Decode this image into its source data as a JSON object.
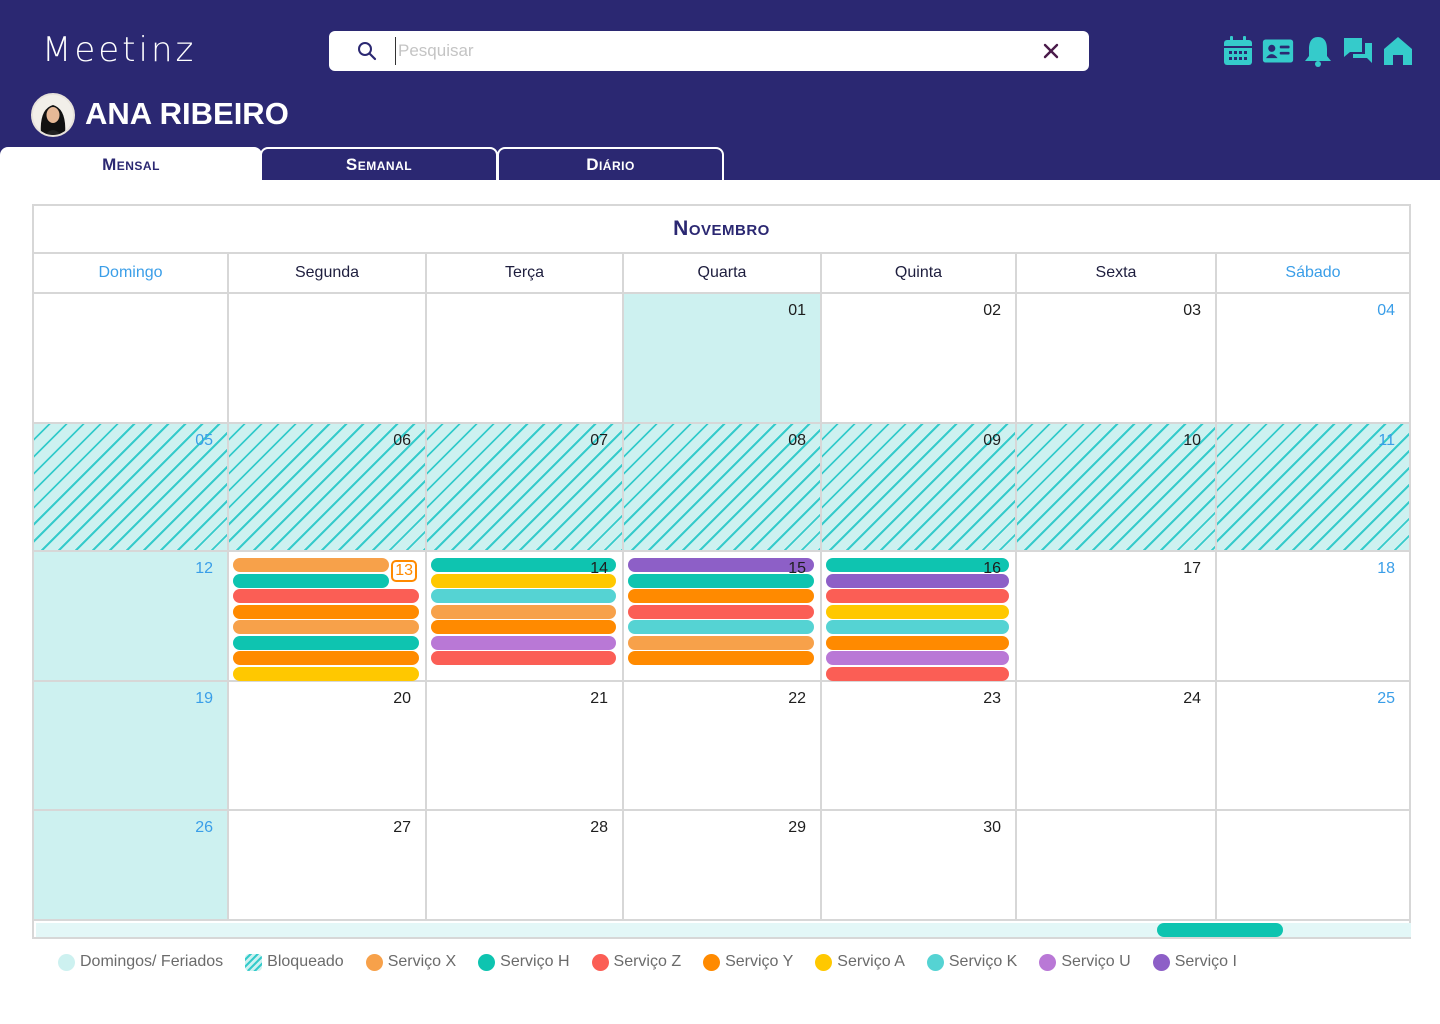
{
  "app": {
    "logo": "Meetinz"
  },
  "search": {
    "placeholder": "Pesquisar",
    "value": ""
  },
  "top_icons": [
    "calendar-icon",
    "contact-card-icon",
    "bell-icon",
    "chat-icon",
    "home-icon"
  ],
  "user": {
    "name": "ANA RIBEIRO"
  },
  "tabs": [
    {
      "label": "Mensal",
      "active": true
    },
    {
      "label": "Semanal",
      "active": false
    },
    {
      "label": "Diário",
      "active": false
    }
  ],
  "calendar": {
    "month": "Novembro",
    "weekdays": [
      "Domingo",
      "Segunda",
      "Terça",
      "Quarta",
      "Quinta",
      "Sexta",
      "Sábado"
    ],
    "weeks": [
      [
        {
          "day": ""
        },
        {
          "day": ""
        },
        {
          "day": ""
        },
        {
          "day": "01",
          "state": "holiday"
        },
        {
          "day": "02"
        },
        {
          "day": "03"
        },
        {
          "day": "04"
        }
      ],
      [
        {
          "day": "05",
          "state": "blocked"
        },
        {
          "day": "06",
          "state": "blocked"
        },
        {
          "day": "07",
          "state": "blocked"
        },
        {
          "day": "08",
          "state": "blocked"
        },
        {
          "day": "09",
          "state": "blocked"
        },
        {
          "day": "10",
          "state": "blocked"
        },
        {
          "day": "11",
          "state": "blocked"
        }
      ],
      [
        {
          "day": "12",
          "state": "holiday"
        },
        {
          "day": "13",
          "today": true,
          "events": [
            "X",
            "H",
            "Z",
            "Y",
            "X",
            "H",
            "Y",
            "A"
          ]
        },
        {
          "day": "14",
          "events": [
            "H",
            "A",
            "K",
            "X",
            "Y",
            "U",
            "Z"
          ]
        },
        {
          "day": "15",
          "events": [
            "I",
            "H",
            "Y",
            "Z",
            "K",
            "X",
            "Y"
          ]
        },
        {
          "day": "16",
          "events": [
            "H",
            "I",
            "Z",
            "A",
            "K",
            "Y",
            "U",
            "Z"
          ]
        },
        {
          "day": "17"
        },
        {
          "day": "18"
        }
      ],
      [
        {
          "day": "19",
          "state": "holiday"
        },
        {
          "day": "20"
        },
        {
          "day": "21"
        },
        {
          "day": "22"
        },
        {
          "day": "23"
        },
        {
          "day": "24"
        },
        {
          "day": "25"
        }
      ],
      [
        {
          "day": "26",
          "state": "holiday"
        },
        {
          "day": "27"
        },
        {
          "day": "28"
        },
        {
          "day": "29"
        },
        {
          "day": "30"
        },
        {
          "day": ""
        },
        {
          "day": ""
        }
      ]
    ]
  },
  "services": {
    "X": {
      "label": "Serviço X",
      "color": "#f7a14a"
    },
    "H": {
      "label": "Serviço H",
      "color": "#0ec4b0"
    },
    "Z": {
      "label": "Serviço Z",
      "color": "#fb5e55"
    },
    "Y": {
      "label": "Serviço Y",
      "color": "#ff8a00"
    },
    "A": {
      "label": "Serviço A",
      "color": "#ffc800"
    },
    "K": {
      "label": "Serviço K",
      "color": "#55d3d3"
    },
    "U": {
      "label": "Serviço U",
      "color": "#b978d6"
    },
    "I": {
      "label": "Serviço I",
      "color": "#8d5fc7"
    }
  },
  "legend": {
    "holidays_label": "Domingos/ Feriados",
    "holidays_color": "#cdf1f0",
    "blocked_label": "Bloqueado",
    "services_order": [
      "X",
      "H",
      "Z",
      "Y",
      "A",
      "K",
      "U",
      "I"
    ]
  },
  "colors": {
    "header": "#2b2872",
    "accent": "#35cbcb",
    "weekend_text": "#3a9ee8",
    "today": "#ff8a00"
  }
}
